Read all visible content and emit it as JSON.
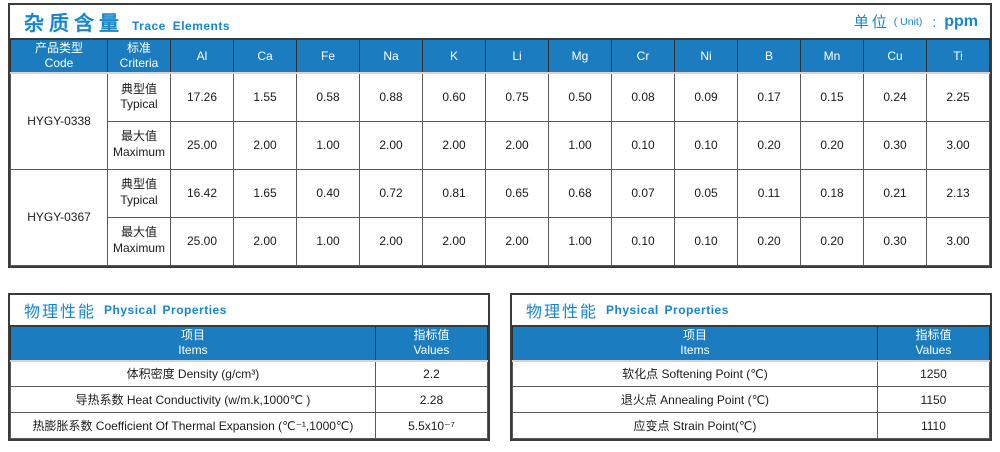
{
  "colors": {
    "header_blue": "#1b7dc0",
    "title_blue": "#1786cc",
    "border_dark": "#3b3b3b"
  },
  "trace": {
    "title_cn": "杂质含量",
    "title_en": "Trace Elements",
    "unit": {
      "cn": "单位",
      "paren": "( Unit)",
      "colon": ":",
      "value": "ppm"
    },
    "code_header": {
      "cn": "产品类型",
      "en": "Code"
    },
    "criteria_header": {
      "cn": "标准",
      "en": "Criteria"
    },
    "criteria_labels": {
      "typical": {
        "cn": "典型值",
        "en": "Typical"
      },
      "maximum": {
        "cn": "最大值",
        "en": "Maximum"
      }
    },
    "elements": [
      "Al",
      "Ca",
      "Fe",
      "Na",
      "K",
      "Li",
      "Mg",
      "Cr",
      "Ni",
      "B",
      "Mn",
      "Cu",
      "Ti"
    ],
    "products": [
      {
        "code": "HYGY-0338",
        "typical": [
          "17.26",
          "1.55",
          "0.58",
          "0.88",
          "0.60",
          "0.75",
          "0.50",
          "0.08",
          "0.09",
          "0.17",
          "0.15",
          "0.24",
          "2.25"
        ],
        "maximum": [
          "25.00",
          "2.00",
          "1.00",
          "2.00",
          "2.00",
          "2.00",
          "1.00",
          "0.10",
          "0.10",
          "0.20",
          "0.20",
          "0.30",
          "3.00"
        ]
      },
      {
        "code": "HYGY-0367",
        "typical": [
          "16.42",
          "1.65",
          "0.40",
          "0.72",
          "0.81",
          "0.65",
          "0.68",
          "0.07",
          "0.05",
          "0.11",
          "0.18",
          "0.21",
          "2.13"
        ],
        "maximum": [
          "25.00",
          "2.00",
          "1.00",
          "2.00",
          "2.00",
          "2.00",
          "1.00",
          "0.10",
          "0.10",
          "0.20",
          "0.20",
          "0.30",
          "3.00"
        ]
      }
    ]
  },
  "physical_tables": [
    {
      "title_cn": "物理性能",
      "title_en": "Physical Properties",
      "items_header": {
        "cn": "项目",
        "en": "Items"
      },
      "values_header": {
        "cn": "指标值",
        "en": "Values"
      },
      "rows": [
        {
          "label": "体积密度 Density (g/cm³)",
          "value": "2.2"
        },
        {
          "label": "导热系数 Heat Conductivity (w/m.k,1000℃ )",
          "value": "2.28"
        },
        {
          "label": "热膨胀系数 Coefficient Of Thermal Expansion (℃⁻¹,1000℃)",
          "value": "5.5x10⁻⁷"
        }
      ]
    },
    {
      "title_cn": "物理性能",
      "title_en": "Physical Properties",
      "items_header": {
        "cn": "项目",
        "en": "Items"
      },
      "values_header": {
        "cn": "指标值",
        "en": "Values"
      },
      "rows": [
        {
          "label": "软化点 Softening Point (℃)",
          "value": "1250"
        },
        {
          "label": "退火点 Annealing Point (℃)",
          "value": "1150"
        },
        {
          "label": "应变点 Strain Point(℃)",
          "value": "1110"
        }
      ]
    }
  ]
}
